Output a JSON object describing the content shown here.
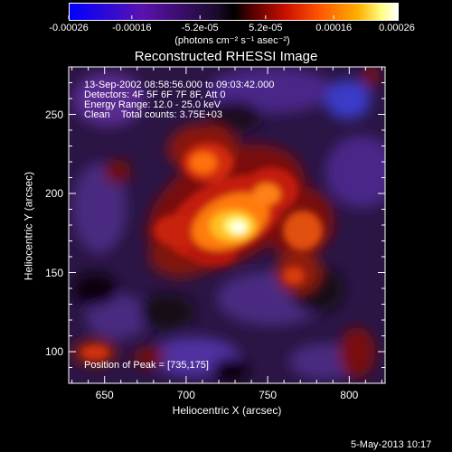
{
  "colorbar": {
    "tick_labels": [
      "-0.00026",
      "-0.00016",
      "-5.2e-05",
      "5.2e-05",
      "0.00016",
      "0.00026"
    ],
    "tick_values": [
      -0.00026,
      -0.00016,
      -5.2e-05,
      5.2e-05,
      0.00016,
      0.00026
    ],
    "range": [
      -0.00026,
      0.00026
    ],
    "unit_line": "(photons cm⁻² s⁻¹ asec⁻²)",
    "colors": [
      "#0000ff",
      "#6a0dad",
      "#000000",
      "#cc0000",
      "#ff8c00",
      "#ffffff"
    ]
  },
  "chart_data": {
    "type": "heatmap",
    "title": "Reconstructed RHESSI Image",
    "xlabel": "Heliocentric X (arcsec)",
    "ylabel": "Heliocentric Y (arcsec)",
    "xlim": [
      628,
      822
    ],
    "ylim": [
      80,
      280
    ],
    "x_ticks": [
      650,
      700,
      750,
      800
    ],
    "y_ticks": [
      100,
      150,
      200,
      250
    ],
    "peak": [
      735,
      175
    ],
    "grid": false
  },
  "annotations": {
    "time_range": "13-Sep-2002 08:58:56.000 to 09:03:42.000",
    "detectors": "Detectors: 4F 5F 6F 7F 8F, Att 0",
    "energy_range": "Energy Range: 12.0 - 25.0 keV",
    "clean_line": "Clean    Total counts: 3.75E+03",
    "peak_label": "Position of Peak = [735,175]"
  },
  "footer": {
    "date": "5-May-2013 10:17"
  }
}
